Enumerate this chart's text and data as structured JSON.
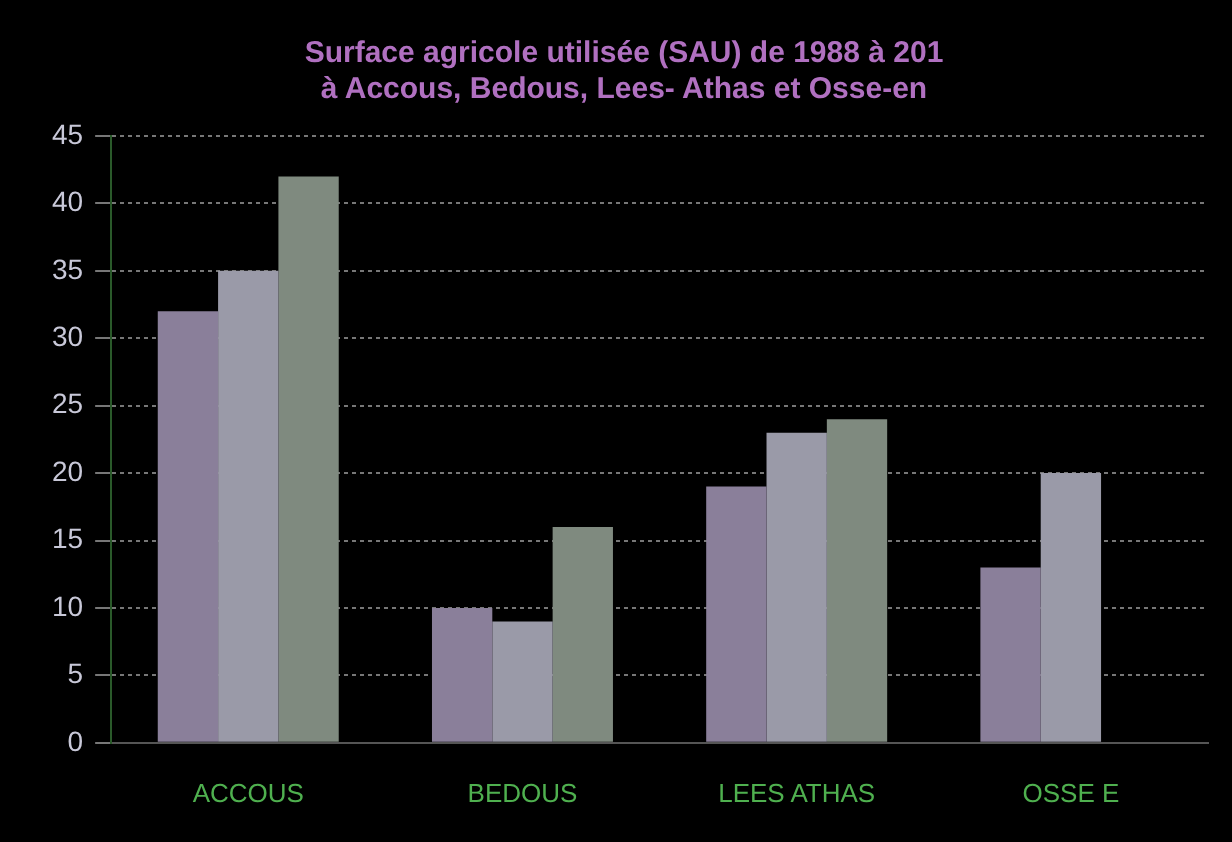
{
  "chart_data": {
    "type": "bar",
    "title": [
      "Surface agricole utilisée (SAU) de 1988 à 201",
      "à Accous, Bedous, Lees- Athas et Osse-en"
    ],
    "categories": [
      "ACCOUS",
      "BEDOUS",
      "LEES ATHAS",
      "OSSE E"
    ],
    "series": [
      {
        "color": "#8a7f9a",
        "values": [
          32,
          10,
          19,
          13
        ]
      },
      {
        "color": "#9a9aa8",
        "values": [
          35,
          9,
          23,
          20
        ]
      },
      {
        "color": "#7f8a7f",
        "values": [
          42,
          16,
          24,
          null
        ]
      }
    ],
    "ylim": [
      0,
      45
    ],
    "yticks": [
      0,
      5,
      10,
      15,
      20,
      25,
      30,
      35,
      40,
      45
    ],
    "grid": "y",
    "legend": false
  }
}
